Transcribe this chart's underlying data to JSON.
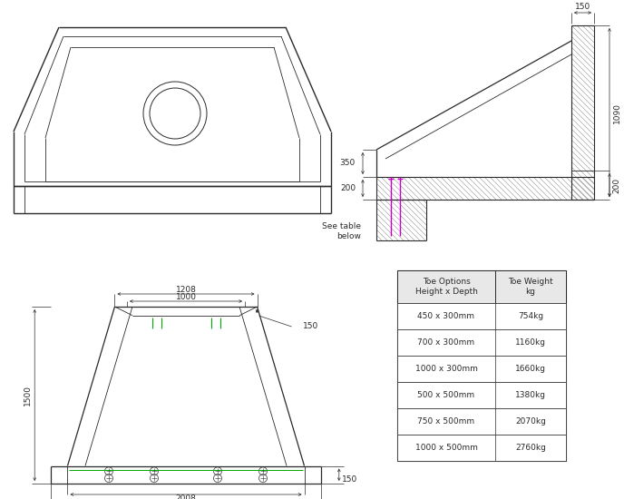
{
  "bg_color": "#ffffff",
  "line_color": "#2a2a2a",
  "dim_color": "#2a2a2a",
  "hatch_color": "#888888",
  "green_color": "#00aa00",
  "magenta_color": "#cc00cc",
  "table_rows": [
    [
      "450 x 300mm",
      "754kg"
    ],
    [
      "700 x 300mm",
      "1160kg"
    ],
    [
      "1000 x 300mm",
      "1660kg"
    ],
    [
      "500 x 500mm",
      "1380kg"
    ],
    [
      "750 x 500mm",
      "2070kg"
    ],
    [
      "1000 x 500mm",
      "2760kg"
    ]
  ],
  "dim_fontsize": 6.5,
  "label_fontsize": 6.5
}
